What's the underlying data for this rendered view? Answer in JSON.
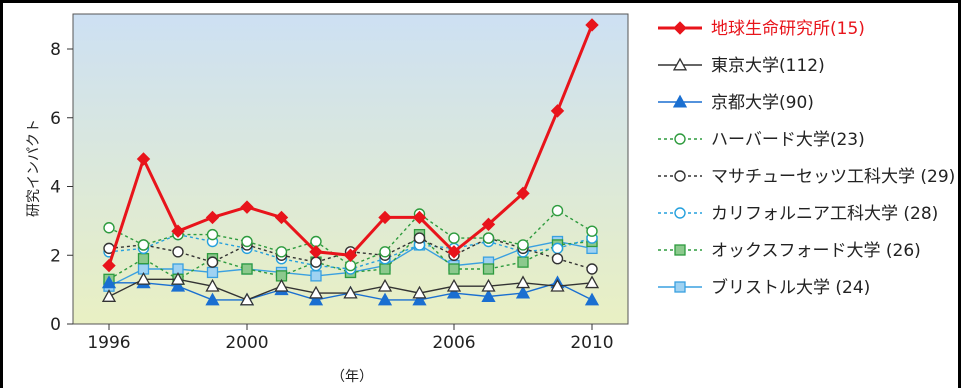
{
  "chart_data": {
    "type": "line",
    "ylabel": "研究インパクト",
    "xlabel": "（年）",
    "xlim": [
      1996,
      2010
    ],
    "ylim": [
      0,
      9
    ],
    "x_ticks": [
      "1996",
      "2000",
      "2006",
      "2010"
    ],
    "y_ticks": [
      "0",
      "2",
      "4",
      "6",
      "8"
    ],
    "x": [
      1996,
      1997,
      1998,
      1999,
      2000,
      2001,
      2002,
      2003,
      2004,
      2005,
      2006,
      2007,
      2008,
      2009,
      2010
    ],
    "series": [
      {
        "name": "地球生命研究所(15)",
        "color": "#e8141b",
        "marker": "diamond",
        "dash": "solid",
        "values": [
          1.7,
          4.8,
          2.7,
          3.1,
          3.4,
          3.1,
          2.1,
          2.0,
          3.1,
          3.1,
          2.1,
          2.9,
          3.8,
          6.2,
          8.7
        ]
      },
      {
        "name": "東京大学(112)",
        "color": "#333333",
        "marker": "triangle-open",
        "dash": "solid",
        "values": [
          0.8,
          1.3,
          1.3,
          1.1,
          0.7,
          1.1,
          0.9,
          0.9,
          1.1,
          0.9,
          1.1,
          1.1,
          1.2,
          1.1,
          1.2
        ]
      },
      {
        "name": "京都大学(90)",
        "color": "#1a6fd1",
        "marker": "triangle-filled",
        "dash": "solid",
        "values": [
          1.2,
          1.2,
          1.1,
          0.7,
          0.7,
          1.0,
          0.7,
          0.9,
          0.7,
          0.7,
          0.9,
          0.8,
          0.9,
          1.2,
          0.7
        ]
      },
      {
        "name": "ハーバード大学(23)",
        "color": "#2e9b3e",
        "marker": "circle-open",
        "dash": "dotted",
        "values": [
          2.8,
          2.3,
          2.6,
          2.6,
          2.4,
          2.1,
          2.4,
          1.7,
          2.1,
          3.2,
          2.5,
          2.5,
          2.3,
          3.3,
          2.7
        ]
      },
      {
        "name": "マサチューセッツ工科大学 (29)",
        "color": "#333333",
        "marker": "circle-open",
        "dash": "dotted",
        "values": [
          2.2,
          2.3,
          2.1,
          1.8,
          2.3,
          2.0,
          1.8,
          2.1,
          2.0,
          2.5,
          2.0,
          2.5,
          2.2,
          1.9,
          1.6
        ]
      },
      {
        "name": "カリフォルニア工科大学 (28)",
        "color": "#25a0dd",
        "marker": "circle-open",
        "dash": "dotted",
        "values": [
          2.1,
          2.2,
          2.6,
          2.4,
          2.2,
          1.9,
          1.7,
          1.6,
          1.9,
          2.3,
          2.2,
          2.4,
          2.1,
          2.2,
          2.5
        ]
      },
      {
        "name": "オックスフォード大学 (26)",
        "color": "#2e9b3e",
        "marker": "square-filled",
        "dash": "dotted",
        "values": [
          1.3,
          1.9,
          1.3,
          1.9,
          1.6,
          1.4,
          1.8,
          1.5,
          1.6,
          2.6,
          1.6,
          1.6,
          1.8,
          2.3,
          2.4
        ]
      },
      {
        "name": "ブリストル大学 (24)",
        "color": "#3aa0e0",
        "marker": "square-filled",
        "dash": "solid",
        "values": [
          1.1,
          1.6,
          1.6,
          1.5,
          1.6,
          1.5,
          1.4,
          1.5,
          1.7,
          2.3,
          1.7,
          1.8,
          2.2,
          2.4,
          2.2
        ]
      }
    ],
    "legend_position": "right",
    "background": {
      "top": "#cde0f3",
      "bottom": "#e9f0c3"
    },
    "grid": false
  }
}
